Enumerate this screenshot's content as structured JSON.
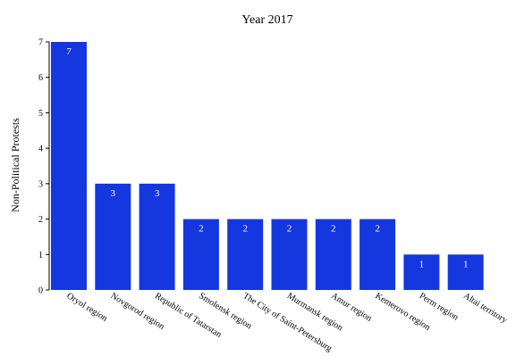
{
  "chart_data": {
    "type": "bar",
    "title": "Year 2017",
    "xlabel": "",
    "ylabel": "Non-Political Protests",
    "categories": [
      "Oryol region",
      "Novgorod region",
      "Republic of Tatarstan",
      "Smolensk region",
      "The City of Saint-Petersburg",
      "Murmansk region",
      "Amur region",
      "Kemerovo region",
      "Perm region",
      "Altai territory"
    ],
    "values": [
      7,
      3,
      3,
      2,
      2,
      2,
      2,
      2,
      1,
      1
    ],
    "data_labels": [
      "7",
      "3",
      "3",
      "2",
      "2",
      "2",
      "2",
      "2",
      "1",
      "1"
    ],
    "ylim": [
      0,
      7
    ],
    "yticks": [
      "0",
      "1",
      "2",
      "3",
      "4",
      "5",
      "6",
      "7"
    ],
    "grid": false,
    "legend": "none",
    "bar_color": "#1437e0"
  }
}
